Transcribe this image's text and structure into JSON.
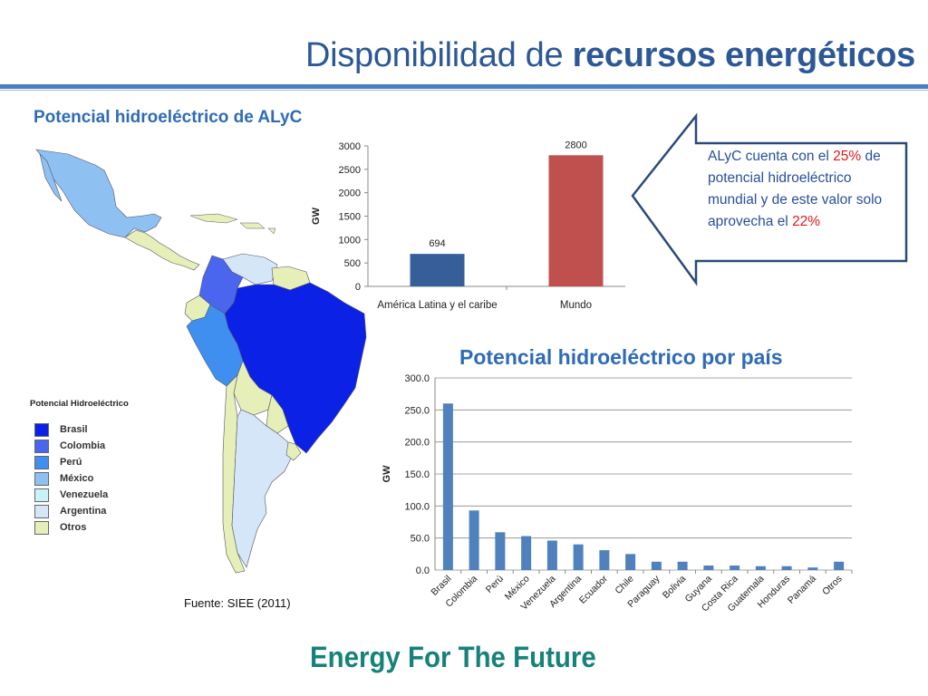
{
  "slide": {
    "title_normal": "Disponibilidad de ",
    "title_bold": "recursos energéticos",
    "section1": "Potencial hidroeléctrico de ALyC",
    "section2": "Potencial hidroeléctrico por país",
    "source": "Fuente:  SIEE (2011)",
    "footer": "Energy For The Future"
  },
  "callout": {
    "text1": " ALyC  cuenta con el ",
    "pct1": "25%",
    "text2": " de potencial hidroeléctrico mundial  y de este valor solo aprovecha el ",
    "pct2": "22%",
    "colors": {
      "text": "#27509a",
      "highlight": "#e0181c",
      "border": "#2b4a78"
    }
  },
  "legend": {
    "title": "Potencial Hidroeléctrico",
    "items": [
      {
        "label": "Brasil",
        "color": "#0b22e6"
      },
      {
        "label": "Colombia",
        "color": "#4a66ee"
      },
      {
        "label": "Perú",
        "color": "#3f8ff0"
      },
      {
        "label": "México",
        "color": "#8fc0f2"
      },
      {
        "label": "Venezuela",
        "color": "#c9f3f6"
      },
      {
        "label": "Argentina",
        "color": "#d4e6f8"
      },
      {
        "label": "Otros",
        "color": "#e6efb8"
      }
    ]
  },
  "chart_data": [
    {
      "type": "bar",
      "categories": [
        "América Latina y el caribe",
        "Mundo"
      ],
      "values": [
        694,
        2800
      ],
      "colors": [
        "#365f9a",
        "#c0504d"
      ],
      "ylabel": "GW",
      "ylim": [
        0,
        3000
      ],
      "yticks": [
        "0",
        "500",
        "1000",
        "1500",
        "2000",
        "2500",
        "3000"
      ],
      "data_labels": [
        "694",
        "2800"
      ],
      "grid": false
    },
    {
      "type": "bar",
      "title": "Potencial hidroeléctrico por país",
      "categories": [
        "Brasil",
        "Colombia",
        "Perú",
        "México",
        "Venezuela",
        "Argentina",
        "Ecuador",
        "Chile",
        "Paraguay",
        "Bolivia",
        "Guyana",
        "Costa Rica",
        "Guatemala",
        "Honduras",
        "Panamá",
        "Otros"
      ],
      "values": [
        260,
        93,
        59,
        53,
        46,
        40,
        31,
        25,
        13,
        13,
        7,
        7,
        6,
        6,
        4,
        13
      ],
      "color": "#4f81bd",
      "ylabel": "GW",
      "ylim": [
        0,
        300
      ],
      "yticks": [
        "0.0",
        "50.0",
        "100.0",
        "150.0",
        "200.0",
        "250.0",
        "300.0"
      ],
      "grid": true
    }
  ]
}
